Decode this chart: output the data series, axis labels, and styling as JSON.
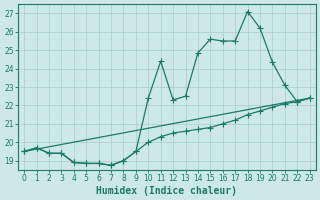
{
  "xlabel": "Humidex (Indice chaleur)",
  "bg_color": "#cde8e8",
  "grid_color": "#b0d0d0",
  "line_color": "#1a7a6a",
  "xlim": [
    -0.5,
    23.5
  ],
  "ylim": [
    18.5,
    27.5
  ],
  "xticks": [
    0,
    1,
    2,
    3,
    4,
    5,
    6,
    7,
    8,
    9,
    10,
    11,
    12,
    13,
    14,
    15,
    16,
    17,
    18,
    19,
    20,
    21,
    22,
    23
  ],
  "yticks": [
    19,
    20,
    21,
    22,
    23,
    24,
    25,
    26,
    27
  ],
  "line1_x": [
    0,
    1,
    2,
    3,
    4,
    5,
    6,
    7,
    8,
    9,
    10,
    11,
    12,
    13,
    14,
    15,
    16,
    17,
    18,
    19,
    20,
    21,
    22,
    23
  ],
  "line1_y": [
    19.5,
    19.7,
    19.4,
    19.4,
    18.9,
    18.85,
    18.85,
    18.75,
    19.0,
    19.5,
    20.0,
    20.3,
    20.5,
    20.6,
    20.7,
    20.8,
    21.0,
    21.2,
    21.5,
    21.7,
    21.9,
    22.1,
    22.2,
    22.4
  ],
  "line2_x": [
    0,
    1,
    2,
    3,
    4,
    5,
    6,
    7,
    8,
    9,
    10,
    11,
    12,
    13,
    14,
    15,
    16,
    17,
    18,
    19,
    20,
    21,
    22,
    23
  ],
  "line2_y": [
    19.5,
    19.7,
    19.4,
    19.4,
    18.9,
    18.85,
    18.85,
    18.75,
    19.0,
    19.5,
    22.4,
    24.4,
    22.3,
    22.5,
    24.85,
    25.6,
    25.5,
    25.5,
    27.1,
    26.2,
    24.35,
    23.1,
    22.2,
    22.4
  ],
  "line3_x": [
    0,
    23
  ],
  "line3_y": [
    19.5,
    22.4
  ]
}
